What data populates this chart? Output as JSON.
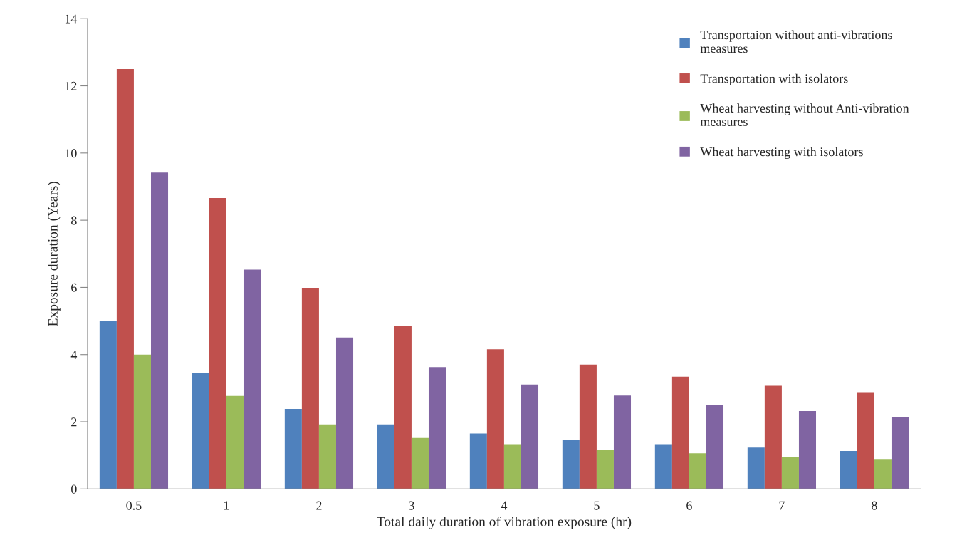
{
  "chart_data": {
    "type": "bar",
    "xlabel": "Total daily duration of vibration exposure (hr)",
    "ylabel": "Exposure duration (Years)",
    "categories": [
      "0.5",
      "1",
      "2",
      "3",
      "4",
      "5",
      "6",
      "7",
      "8"
    ],
    "series": [
      {
        "name": "Transportaion without anti-vibrations\nmeasures",
        "color": "#4f81bd",
        "values": [
          5.0,
          3.46,
          2.38,
          1.92,
          1.65,
          1.45,
          1.33,
          1.23,
          1.13
        ]
      },
      {
        "name": "Transportation with isolators",
        "color": "#c0504d",
        "values": [
          12.5,
          8.66,
          5.99,
          4.84,
          4.16,
          3.7,
          3.34,
          3.07,
          2.88
        ]
      },
      {
        "name": "Wheat harvesting without Anti-vibration\nmeasures",
        "color": "#9bbb59",
        "values": [
          4.0,
          2.77,
          1.92,
          1.52,
          1.33,
          1.15,
          1.06,
          0.96,
          0.89
        ]
      },
      {
        "name": "Wheat harvesting with isolators",
        "color": "#8064a2",
        "values": [
          9.42,
          6.53,
          4.51,
          3.63,
          3.11,
          2.78,
          2.51,
          2.32,
          2.15
        ]
      }
    ],
    "ylim": [
      0,
      14
    ],
    "yticks": [
      0,
      2,
      4,
      6,
      8,
      10,
      12,
      14
    ],
    "grid": false,
    "legend": "top right"
  }
}
